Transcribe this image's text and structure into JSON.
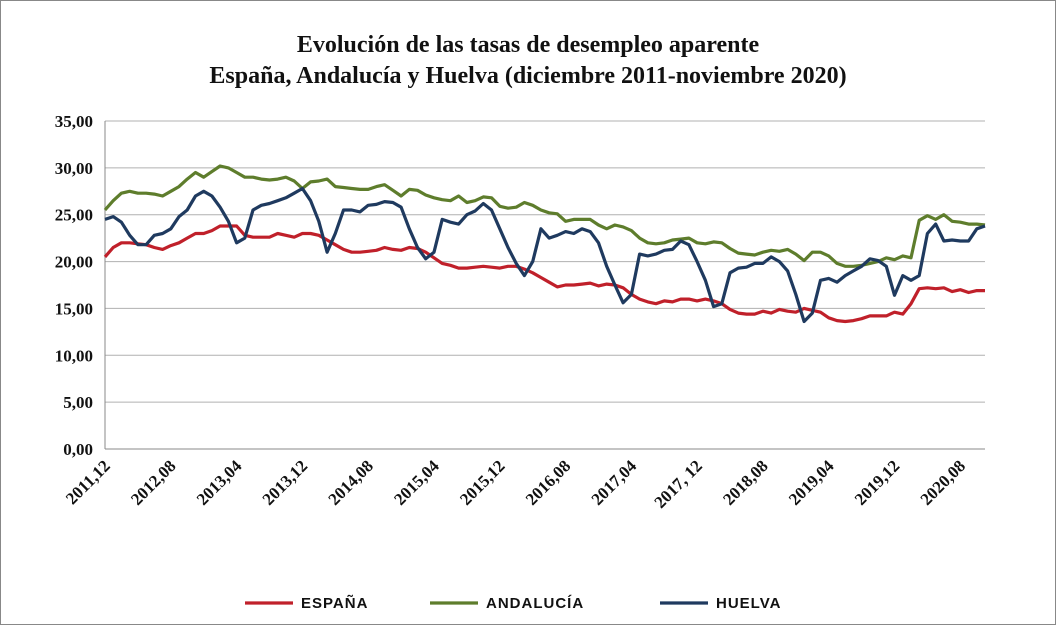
{
  "chart_data": {
    "type": "line",
    "title": "Evolución de las tasas de desempleo aparente",
    "subtitle": "España, Andalucía y Huelva (diciembre 2011-noviembre 2020)",
    "categories": [
      "2011,12",
      null,
      null,
      null,
      null,
      null,
      null,
      null,
      "2012,08",
      null,
      null,
      null,
      null,
      null,
      null,
      null,
      "2013,04",
      null,
      null,
      null,
      null,
      null,
      null,
      null,
      "2013,12",
      null,
      null,
      null,
      null,
      null,
      null,
      null,
      "2014,08",
      null,
      null,
      null,
      null,
      null,
      null,
      null,
      "2015,04",
      null,
      null,
      null,
      null,
      null,
      null,
      null,
      "2015,12",
      null,
      null,
      null,
      null,
      null,
      null,
      null,
      "2016,08",
      null,
      null,
      null,
      null,
      null,
      null,
      null,
      "2017,04",
      null,
      null,
      null,
      null,
      null,
      null,
      null,
      "2017, 12",
      null,
      null,
      null,
      null,
      null,
      null,
      null,
      "2018,08",
      null,
      null,
      null,
      null,
      null,
      null,
      null,
      "2019,04",
      null,
      null,
      null,
      null,
      null,
      null,
      null,
      "2019,12",
      null,
      null,
      null,
      null,
      null,
      null,
      null,
      "2020,08",
      null,
      null,
      null
    ],
    "series": [
      {
        "name": "ESPAÑA",
        "color": "#c0202a",
        "values": [
          20.5,
          21.5,
          22,
          22,
          21.9,
          21.8,
          21.5,
          21.3,
          21.7,
          22,
          22.5,
          23,
          23,
          23.3,
          23.8,
          23.8,
          23.8,
          22.8,
          22.6,
          22.6,
          22.6,
          23,
          22.8,
          22.6,
          23,
          23,
          22.8,
          22.3,
          21.8,
          21.3,
          21,
          21,
          21.1,
          21.2,
          21.5,
          21.3,
          21.2,
          21.5,
          21.4,
          21,
          20.4,
          19.8,
          19.6,
          19.3,
          19.3,
          19.4,
          19.5,
          19.4,
          19.3,
          19.5,
          19.5,
          19.2,
          18.8,
          18.3,
          17.8,
          17.3,
          17.5,
          17.5,
          17.6,
          17.7,
          17.4,
          17.6,
          17.5,
          17.2,
          16.5,
          16,
          15.7,
          15.5,
          15.8,
          15.7,
          16,
          16,
          15.8,
          16,
          15.8,
          15.5,
          14.9,
          14.5,
          14.4,
          14.4,
          14.7,
          14.5,
          14.9,
          14.7,
          14.6,
          15,
          14.8,
          14.6,
          14,
          13.7,
          13.6,
          13.7,
          13.9,
          14.2,
          14.2,
          14.2,
          14.6,
          14.4,
          15.5,
          17.1,
          17.2,
          17.1,
          17.2,
          16.8,
          17,
          16.7,
          16.9,
          16.9
        ]
      },
      {
        "name": "ANDALUCÍA",
        "color": "#5e7d2c",
        "values": [
          25.5,
          26.5,
          27.3,
          27.5,
          27.3,
          27.3,
          27.2,
          27,
          27.5,
          28,
          28.8,
          29.5,
          29,
          29.6,
          30.2,
          30,
          29.5,
          29,
          29,
          28.8,
          28.7,
          28.8,
          29,
          28.6,
          27.8,
          28.5,
          28.6,
          28.8,
          28,
          27.9,
          27.8,
          27.7,
          27.7,
          28,
          28.2,
          27.6,
          27,
          27.7,
          27.6,
          27.1,
          26.8,
          26.6,
          26.5,
          27,
          26.3,
          26.5,
          26.9,
          26.8,
          25.9,
          25.7,
          25.8,
          26.3,
          26,
          25.5,
          25.2,
          25.1,
          24.3,
          24.5,
          24.5,
          24.5,
          23.9,
          23.5,
          23.9,
          23.7,
          23.3,
          22.5,
          22,
          21.9,
          22,
          22.3,
          22.4,
          22.5,
          22,
          21.9,
          22.1,
          22,
          21.4,
          20.9,
          20.8,
          20.7,
          21,
          21.2,
          21.1,
          21.3,
          20.8,
          20.1,
          21,
          21,
          20.6,
          19.8,
          19.5,
          19.5,
          19.6,
          19.8,
          20,
          20.4,
          20.2,
          20.6,
          20.4,
          24.4,
          24.9,
          24.5,
          25,
          24.3,
          24.2,
          24,
          24,
          23.9
        ]
      },
      {
        "name": "HUELVA",
        "color": "#1f3a5f",
        "values": [
          24.5,
          24.8,
          24.2,
          22.8,
          21.8,
          21.8,
          22.8,
          23,
          23.5,
          24.8,
          25.5,
          27,
          27.5,
          27,
          25.8,
          24.3,
          22,
          22.5,
          25.5,
          26,
          26.2,
          26.5,
          26.8,
          27.3,
          27.8,
          26.5,
          24.3,
          21,
          23,
          25.5,
          25.5,
          25.3,
          26,
          26.1,
          26.4,
          26.3,
          25.8,
          23.5,
          21.5,
          20.3,
          21,
          24.5,
          24.2,
          24,
          25,
          25.4,
          26.2,
          25.5,
          23.5,
          21.5,
          19.8,
          18.5,
          20,
          23.5,
          22.5,
          22.8,
          23.2,
          23,
          23.5,
          23.2,
          22,
          19.5,
          17.5,
          15.6,
          16.5,
          20.8,
          20.6,
          20.8,
          21.2,
          21.3,
          22.2,
          21.8,
          20,
          18,
          15.2,
          15.5,
          18.8,
          19.3,
          19.4,
          19.8,
          19.8,
          20.5,
          20,
          19,
          16.5,
          13.6,
          14.5,
          18,
          18.2,
          17.8,
          18.5,
          19,
          19.5,
          20.3,
          20.1,
          19.5,
          16.4,
          18.5,
          18,
          18.5,
          23,
          24,
          22.2,
          22.3,
          22.2,
          22.2,
          23.5,
          23.8
        ]
      }
    ],
    "ylim": [
      0,
      35
    ],
    "yticks": [
      {
        "value": 0,
        "label": "0,00"
      },
      {
        "value": 5,
        "label": "5,00"
      },
      {
        "value": 10,
        "label": "10,00"
      },
      {
        "value": 15,
        "label": "15,00"
      },
      {
        "value": 20,
        "label": "20,00"
      },
      {
        "value": 25,
        "label": "25,00"
      },
      {
        "value": 30,
        "label": "30,00"
      },
      {
        "value": 35,
        "label": "35,00"
      }
    ],
    "grid": true,
    "legend": "bottom"
  }
}
